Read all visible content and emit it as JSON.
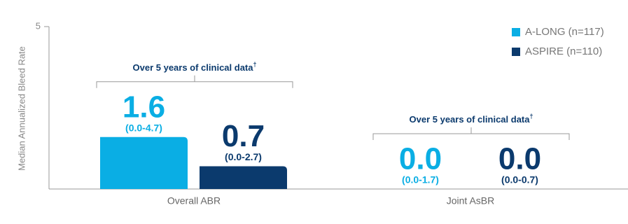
{
  "chart_data": {
    "type": "bar",
    "y_label": "Median Annualized Bleed Rate",
    "categories": [
      "Overall ABR",
      "Joint AsBR"
    ],
    "series": [
      {
        "name": "A-LONG (n=117)",
        "color": "#0aaee4",
        "values": [
          1.6,
          0
        ],
        "value_labels": [
          "1.6",
          "0.0"
        ],
        "ranges": [
          "(0.0-4.7)",
          "(0.0-1.7)"
        ]
      },
      {
        "name": "ASPIRE (n=110)",
        "color": "#0b3a6d",
        "values": [
          0.7,
          0
        ],
        "value_labels": [
          "0.7",
          "0.0"
        ],
        "ranges": [
          "(0.0-2.7)",
          "(0.0-0.7)"
        ]
      }
    ],
    "annotations": [
      {
        "text": "Over 5 years of clinical data",
        "mark": "†"
      },
      {
        "text": "Over 5 years of clinical data",
        "mark": "†"
      }
    ],
    "ylim": [
      0,
      5
    ],
    "yticks": [
      5
    ],
    "legend": "top-right"
  }
}
